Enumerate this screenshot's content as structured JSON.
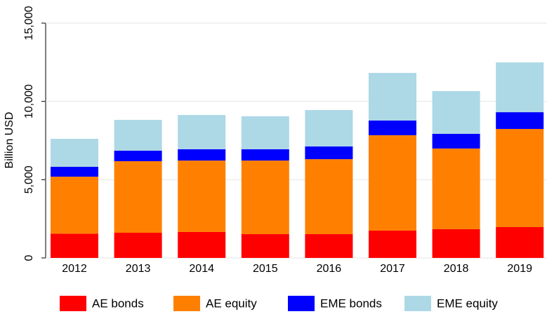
{
  "chart_data": {
    "type": "bar",
    "stacked": true,
    "y_label": "Billion USD",
    "categories": [
      "2012",
      "2013",
      "2014",
      "2015",
      "2016",
      "2017",
      "2018",
      "2019"
    ],
    "series": [
      {
        "name": "AE bonds",
        "color": "#ff0000",
        "values": [
          1550,
          1610,
          1660,
          1520,
          1520,
          1750,
          1840,
          1970
        ]
      },
      {
        "name": "AE equity",
        "color": "#ff8000",
        "values": [
          3640,
          4570,
          4560,
          4700,
          4790,
          6090,
          5150,
          6270
        ]
      },
      {
        "name": "EME bonds",
        "color": "#0000ff",
        "values": [
          630,
          670,
          720,
          720,
          810,
          940,
          940,
          1070
        ]
      },
      {
        "name": "EME equity",
        "color": "#add8e6",
        "values": [
          1790,
          1970,
          2190,
          2110,
          2330,
          3040,
          2730,
          3180
        ]
      }
    ],
    "ylim": [
      0,
      15000
    ],
    "yticks": [
      0,
      {
        "value": 5000,
        "label": "5,000"
      },
      {
        "value": 10000,
        "label": "10,000"
      },
      {
        "value": 15000,
        "label": "15,000"
      }
    ],
    "grid": true,
    "legend": "bottom"
  }
}
